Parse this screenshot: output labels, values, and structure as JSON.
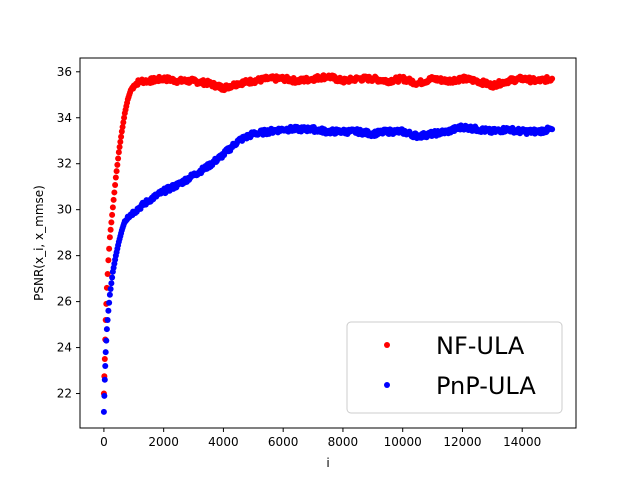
{
  "chart_data": {
    "type": "scatter",
    "title": "",
    "xlabel": "i",
    "ylabel": "PSNR(x_i, x_mmse)",
    "xlim": [
      -800,
      15800
    ],
    "ylim": [
      20.5,
      36.6
    ],
    "xticks": [
      0,
      2000,
      4000,
      6000,
      8000,
      10000,
      12000,
      14000
    ],
    "yticks": [
      22,
      24,
      26,
      28,
      30,
      32,
      34,
      36
    ],
    "grid": false,
    "legend_position": "lower right",
    "series": [
      {
        "name": "NF-ULA",
        "color": "#ff0000",
        "points": [
          [
            0,
            22.0
          ],
          [
            30,
            23.5
          ],
          [
            60,
            25.2
          ],
          [
            100,
            26.6
          ],
          [
            150,
            27.8
          ],
          [
            200,
            28.8
          ],
          [
            300,
            30.1
          ],
          [
            400,
            31.4
          ],
          [
            500,
            32.5
          ],
          [
            600,
            33.4
          ],
          [
            700,
            34.2
          ],
          [
            800,
            34.8
          ],
          [
            900,
            35.2
          ],
          [
            1000,
            35.4
          ],
          [
            1100,
            35.5
          ],
          [
            1200,
            35.6
          ],
          [
            1500,
            35.6
          ],
          [
            2000,
            35.7
          ],
          [
            2500,
            35.6
          ],
          [
            3000,
            35.6
          ],
          [
            3500,
            35.5
          ],
          [
            4000,
            35.3
          ],
          [
            4500,
            35.5
          ],
          [
            5000,
            35.6
          ],
          [
            5500,
            35.7
          ],
          [
            6000,
            35.7
          ],
          [
            6500,
            35.6
          ],
          [
            7000,
            35.7
          ],
          [
            7500,
            35.8
          ],
          [
            8000,
            35.6
          ],
          [
            8500,
            35.7
          ],
          [
            9000,
            35.7
          ],
          [
            9500,
            35.6
          ],
          [
            10000,
            35.7
          ],
          [
            10500,
            35.5
          ],
          [
            11000,
            35.7
          ],
          [
            11500,
            35.6
          ],
          [
            12000,
            35.7
          ],
          [
            12500,
            35.6
          ],
          [
            13000,
            35.4
          ],
          [
            13500,
            35.6
          ],
          [
            14000,
            35.7
          ],
          [
            14500,
            35.6
          ],
          [
            15000,
            35.7
          ]
        ]
      },
      {
        "name": "PnP-ULA",
        "color": "#0000ff",
        "points": [
          [
            0,
            21.2
          ],
          [
            30,
            22.6
          ],
          [
            60,
            23.8
          ],
          [
            100,
            24.8
          ],
          [
            150,
            25.6
          ],
          [
            200,
            26.3
          ],
          [
            300,
            27.3
          ],
          [
            400,
            28.0
          ],
          [
            500,
            28.6
          ],
          [
            600,
            29.1
          ],
          [
            700,
            29.5
          ],
          [
            800,
            29.7
          ],
          [
            1000,
            29.9
          ],
          [
            1200,
            30.1
          ],
          [
            1500,
            30.4
          ],
          [
            2000,
            30.8
          ],
          [
            2500,
            31.1
          ],
          [
            3000,
            31.5
          ],
          [
            3500,
            31.9
          ],
          [
            4000,
            32.4
          ],
          [
            4500,
            33.0
          ],
          [
            5000,
            33.3
          ],
          [
            5500,
            33.4
          ],
          [
            6000,
            33.5
          ],
          [
            6500,
            33.5
          ],
          [
            7000,
            33.5
          ],
          [
            7500,
            33.4
          ],
          [
            8000,
            33.4
          ],
          [
            8500,
            33.4
          ],
          [
            9000,
            33.3
          ],
          [
            9500,
            33.4
          ],
          [
            10000,
            33.4
          ],
          [
            10500,
            33.2
          ],
          [
            11000,
            33.3
          ],
          [
            11500,
            33.4
          ],
          [
            12000,
            33.6
          ],
          [
            12500,
            33.5
          ],
          [
            13000,
            33.4
          ],
          [
            13500,
            33.5
          ],
          [
            14000,
            33.4
          ],
          [
            14500,
            33.4
          ],
          [
            15000,
            33.5
          ]
        ]
      }
    ]
  }
}
